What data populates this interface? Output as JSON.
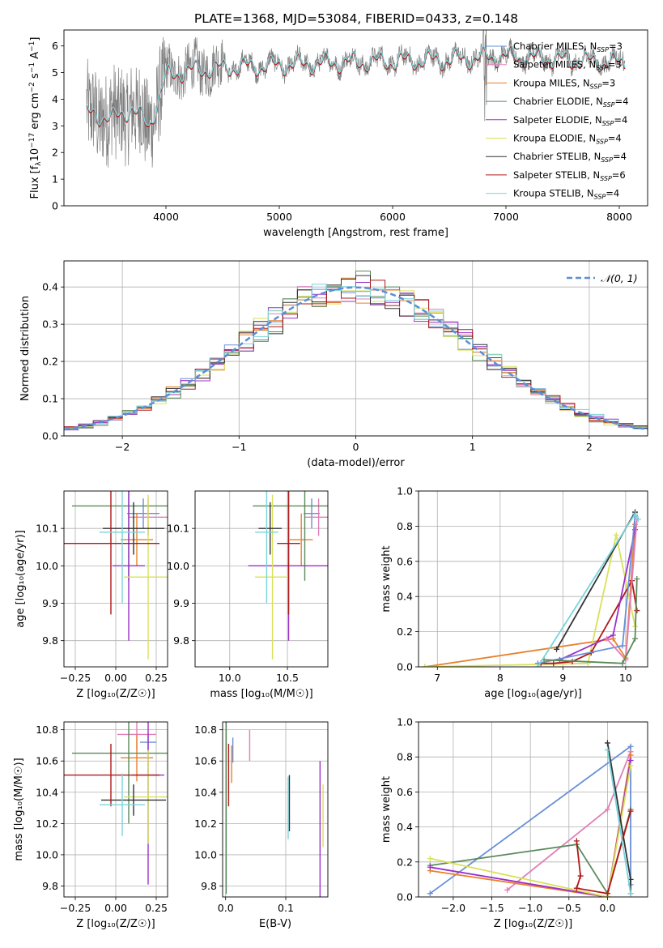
{
  "figure_title": "PLATE=1368, MJD=53084, FIBERID=0433, z=0.148",
  "legend_entries": [
    {
      "prefix": "Chabrier MILES, N",
      "sub": "SSP",
      "suffix": "=3",
      "color": "#6a8fd8"
    },
    {
      "prefix": "Salpeter MILES, N",
      "sub": "SSP",
      "suffix": "=3",
      "color": "#e07fb8"
    },
    {
      "prefix": "Kroupa MILES, N",
      "sub": "SSP",
      "suffix": "=3",
      "color": "#e8812c"
    },
    {
      "prefix": "Chabrier ELODIE, N",
      "sub": "SSP",
      "suffix": "=4",
      "color": "#5a8a5a"
    },
    {
      "prefix": "Salpeter ELODIE, N",
      "sub": "SSP",
      "suffix": "=4",
      "color": "#9b30c8"
    },
    {
      "prefix": "Kroupa ELODIE, N",
      "sub": "SSP",
      "suffix": "=4",
      "color": "#d9e05a"
    },
    {
      "prefix": "Chabrier STELIB, N",
      "sub": "SSP",
      "suffix": "=4",
      "color": "#333333"
    },
    {
      "prefix": "Salpeter STELIB, N",
      "sub": "SSP",
      "suffix": "=6",
      "color": "#b01818"
    },
    {
      "prefix": "Kroupa STELIB, N",
      "sub": "SSP",
      "suffix": "=4",
      "color": "#79d4dc"
    }
  ],
  "normal_legend": "𝒩(0, 1)",
  "chart_data": [
    {
      "id": "spectrum",
      "type": "line",
      "title": "PLATE=1368, MJD=53084, FIBERID=0433, z=0.148",
      "xlabel": "wavelength [Angstrom, rest frame]",
      "ylabel_parts": [
        "Flux [f",
        "λ",
        "10",
        "−17",
        " erg cm",
        "−2",
        " s",
        "−1",
        " A",
        "−1",
        "]"
      ],
      "xlim": [
        3100,
        8250
      ],
      "ylim": [
        0,
        6.6
      ],
      "xticks": [
        4000,
        5000,
        6000,
        7000,
        8000
      ],
      "yticks": [
        0,
        1,
        2,
        3,
        4,
        5,
        6
      ],
      "data_color": "#808080",
      "model_color": "#79d4dc",
      "model_accent_color": "#b01818",
      "continuum_x": [
        3300,
        3550,
        3700,
        3850,
        3950,
        4000,
        4200,
        4500,
        5000,
        5500,
        6000,
        6500,
        7000,
        7500,
        8000
      ],
      "continuum_y": [
        3.5,
        3.3,
        3.7,
        3.0,
        4.2,
        4.9,
        5.1,
        5.2,
        5.3,
        5.4,
        5.45,
        5.5,
        5.65,
        5.5,
        5.4
      ],
      "xmax_data": 8050
    },
    {
      "id": "residuals",
      "type": "line",
      "xlabel": "(data-model)/error",
      "ylabel": "Normed distribution",
      "xlim": [
        -2.5,
        2.5
      ],
      "ylim": [
        0,
        0.47
      ],
      "xticks": [
        -2,
        -1,
        0,
        1,
        2
      ],
      "xtick_labels": [
        "−2",
        "−1",
        "0",
        "1",
        "2"
      ],
      "yticks": [
        0.0,
        0.1,
        0.2,
        0.3,
        0.4
      ],
      "ytick_labels": [
        "0.0",
        "0.1",
        "0.2",
        "0.3",
        "0.4"
      ],
      "grid": true,
      "bin_width": 0.125,
      "series_colors": [
        "#6a8fd8",
        "#e07fb8",
        "#e8812c",
        "#5a8a5a",
        "#9b30c8",
        "#d9e05a",
        "#333333",
        "#b01818",
        "#79d4dc"
      ],
      "normal_color": "#5b8fd8"
    },
    {
      "id": "age_vs_Z",
      "type": "scatter",
      "xlabel": "Z [log₁₀(Z/Z☉)]",
      "ylabel": "age  [log₁₀(age/yr)]",
      "xlim": [
        -0.32,
        0.32
      ],
      "ylim": [
        9.73,
        10.2
      ],
      "xticks": [
        -0.25,
        0.0,
        0.25
      ],
      "xtick_labels": [
        "−0.25",
        "0.00",
        "0.25"
      ],
      "yticks": [
        9.8,
        9.9,
        10.0,
        10.1
      ],
      "ytick_labels": [
        "9.8",
        "9.9",
        "10.0",
        "10.1"
      ],
      "grid": true,
      "points": [
        {
          "x": 0.17,
          "y": 10.14,
          "xerr": 0.1,
          "yerr": 0.04,
          "color": "#6a8fd8"
        },
        {
          "x": 0.2,
          "y": 10.13,
          "xerr": 0.12,
          "yerr": 0.05,
          "color": "#e07fb8"
        },
        {
          "x": 0.13,
          "y": 10.07,
          "xerr": 0.1,
          "yerr": 0.07,
          "color": "#e8812c"
        },
        {
          "x": 0.08,
          "y": 10.16,
          "xerr": 0.35,
          "yerr": 0.2,
          "color": "#5a8a5a"
        },
        {
          "x": 0.08,
          "y": 10.0,
          "xerr": 0.1,
          "yerr": 0.2,
          "color": "#9b30c8"
        },
        {
          "x": 0.2,
          "y": 9.97,
          "xerr": 0.15,
          "yerr": 0.22,
          "color": "#d9e05a"
        },
        {
          "x": 0.11,
          "y": 10.1,
          "xerr": 0.19,
          "yerr": 0.07,
          "color": "#333333"
        },
        {
          "x": -0.03,
          "y": 10.06,
          "xerr": 0.3,
          "yerr": 0.19,
          "color": "#b01818"
        },
        {
          "x": 0.04,
          "y": 10.09,
          "xerr": 0.14,
          "yerr": 0.19,
          "color": "#79d4dc"
        }
      ]
    },
    {
      "id": "age_vs_mass",
      "type": "scatter",
      "xlabel": "mass [log₁₀(M/M☉)]",
      "xlim": [
        9.7,
        10.85
      ],
      "ylim": [
        9.73,
        10.2
      ],
      "xticks": [
        10.0,
        10.5
      ],
      "xtick_labels": [
        "10.0",
        "10.5"
      ],
      "yticks": [
        9.8,
        9.9,
        10.0,
        10.1
      ],
      "ytick_labels": [
        "9.8",
        "9.9",
        "10.0",
        "10.1"
      ],
      "grid": true,
      "points": [
        {
          "x": 10.71,
          "y": 10.14,
          "xerr": 0.07,
          "yerr": 0.04,
          "color": "#6a8fd8"
        },
        {
          "x": 10.77,
          "y": 10.13,
          "xerr": 0.12,
          "yerr": 0.05,
          "color": "#e07fb8"
        },
        {
          "x": 10.62,
          "y": 10.07,
          "xerr": 0.1,
          "yerr": 0.07,
          "color": "#e8812c"
        },
        {
          "x": 10.65,
          "y": 10.16,
          "xerr": 0.45,
          "yerr": 0.2,
          "color": "#5a8a5a"
        },
        {
          "x": 10.51,
          "y": 10.0,
          "xerr": 0.35,
          "yerr": 0.2,
          "color": "#9b30c8"
        },
        {
          "x": 10.37,
          "y": 9.97,
          "xerr": 0.15,
          "yerr": 0.22,
          "color": "#d9e05a"
        },
        {
          "x": 10.35,
          "y": 10.1,
          "xerr": 0.1,
          "yerr": 0.07,
          "color": "#333333"
        },
        {
          "x": 10.51,
          "y": 10.06,
          "xerr": 0.1,
          "yerr": 0.19,
          "color": "#b01818"
        },
        {
          "x": 10.32,
          "y": 10.09,
          "xerr": 0.1,
          "yerr": 0.19,
          "color": "#79d4dc"
        }
      ]
    },
    {
      "id": "massweight_vs_age",
      "type": "line",
      "xlabel": "age  [log₁₀(age/yr)]",
      "ylabel": "mass weight",
      "xlim": [
        6.7,
        10.35
      ],
      "ylim": [
        0,
        1.0
      ],
      "xticks": [
        7,
        8,
        9,
        10
      ],
      "xtick_labels": [
        "7",
        "8",
        "9",
        "10"
      ],
      "yticks": [
        0.0,
        0.2,
        0.4,
        0.6,
        0.8,
        1.0
      ],
      "ytick_labels": [
        "0.0",
        "0.2",
        "0.4",
        "0.6",
        "0.8",
        "1.0"
      ],
      "grid": true,
      "series": [
        {
          "color": "#e8812c",
          "x": [
            6.8,
            9.8,
            10.0,
            10.15
          ],
          "y": [
            0.0,
            0.16,
            0.05,
            0.81
          ]
        },
        {
          "color": "#d9e05a",
          "x": [
            6.8,
            9.4,
            9.85,
            10.15
          ],
          "y": [
            0.0,
            0.02,
            0.75,
            0.23
          ]
        },
        {
          "color": "#b01818",
          "x": [
            8.65,
            8.85,
            9.15,
            9.45,
            10.1,
            10.18
          ],
          "y": [
            0.02,
            0.02,
            0.03,
            0.08,
            0.49,
            0.32
          ]
        },
        {
          "color": "#9b30c8",
          "x": [
            8.95,
            9.8,
            10.15
          ],
          "y": [
            0.04,
            0.18,
            0.78
          ]
        },
        {
          "color": "#6a8fd8",
          "x": [
            8.6,
            9.95,
            10.15
          ],
          "y": [
            0.02,
            0.12,
            0.86
          ]
        },
        {
          "color": "#e07fb8",
          "x": [
            9.7,
            10.0,
            10.18
          ],
          "y": [
            0.16,
            0.04,
            0.84
          ]
        },
        {
          "color": "#5a8a5a",
          "x": [
            8.7,
            9.95,
            10.15,
            10.18
          ],
          "y": [
            0.04,
            0.02,
            0.16,
            0.5
          ]
        },
        {
          "color": "#333333",
          "x": [
            8.9,
            10.15
          ],
          "y": [
            0.1,
            0.88
          ]
        },
        {
          "color": "#79d4dc",
          "x": [
            8.6,
            10.15,
            10.2
          ],
          "y": [
            0.0,
            0.87,
            0.84
          ]
        }
      ]
    },
    {
      "id": "mass_vs_Z",
      "type": "scatter",
      "xlabel": "Z [log₁₀(Z/Z☉)]",
      "ylabel": "mass [log₁₀(M/M☉)]",
      "xlim": [
        -0.32,
        0.32
      ],
      "ylim": [
        9.73,
        10.85
      ],
      "xticks": [
        -0.25,
        0.0,
        0.25
      ],
      "xtick_labels": [
        "−0.25",
        "0.00",
        "0.25"
      ],
      "yticks": [
        9.8,
        10.0,
        10.2,
        10.4,
        10.6,
        10.8
      ],
      "ytick_labels": [
        "9.8",
        "10.0",
        "10.2",
        "10.4",
        "10.6",
        "10.8"
      ],
      "grid": true,
      "points": [
        {
          "x": 0.2,
          "y": 10.72,
          "xerr": 0.05,
          "yerr": 0.05,
          "color": "#6a8fd8"
        },
        {
          "x": 0.13,
          "y": 10.77,
          "xerr": 0.12,
          "yerr": 0.1,
          "color": "#e07fb8"
        },
        {
          "x": 0.13,
          "y": 10.62,
          "xerr": 0.1,
          "yerr": 0.15,
          "color": "#e8812c"
        },
        {
          "x": 0.08,
          "y": 10.65,
          "xerr": 0.35,
          "yerr": 0.45,
          "color": "#5a8a5a"
        },
        {
          "x": 0.2,
          "y": 10.51,
          "xerr": 0.1,
          "yerr": 0.7,
          "color": "#9b30c8"
        },
        {
          "x": 0.2,
          "y": 10.37,
          "xerr": 0.15,
          "yerr": 0.3,
          "color": "#d9e05a"
        },
        {
          "x": 0.11,
          "y": 10.35,
          "xerr": 0.2,
          "yerr": 0.1,
          "color": "#333333"
        },
        {
          "x": -0.03,
          "y": 10.51,
          "xerr": 0.3,
          "yerr": 0.2,
          "color": "#b01818"
        },
        {
          "x": 0.04,
          "y": 10.32,
          "xerr": 0.14,
          "yerr": 0.2,
          "color": "#79d4dc"
        }
      ]
    },
    {
      "id": "mass_vs_ebv",
      "type": "scatter",
      "xlabel": "E(B-V)",
      "xlim": [
        -0.005,
        0.17
      ],
      "ylim": [
        9.73,
        10.85
      ],
      "xticks": [
        0.0,
        0.1
      ],
      "xtick_labels": [
        "0.0",
        "0.1"
      ],
      "yticks": [
        9.8,
        10.0,
        10.2,
        10.4,
        10.6,
        10.8
      ],
      "ytick_labels": [
        "9.8",
        "10.0",
        "10.2",
        "10.4",
        "10.6",
        "10.8"
      ],
      "grid": true,
      "points": [
        {
          "x": 0.012,
          "y": 10.67,
          "xerr": 0.0,
          "yerr": 0.08,
          "color": "#6a8fd8"
        },
        {
          "x": 0.04,
          "y": 10.7,
          "xerr": 0.0,
          "yerr": 0.1,
          "color": "#e07fb8"
        },
        {
          "x": 0.01,
          "y": 10.58,
          "xerr": 0.0,
          "yerr": 0.12,
          "color": "#e8812c"
        },
        {
          "x": 0.001,
          "y": 10.3,
          "xerr": 0.0,
          "yerr": 0.55,
          "color": "#5a8a5a"
        },
        {
          "x": 0.157,
          "y": 10.1,
          "xerr": 0.0,
          "yerr": 0.5,
          "color": "#9b30c8"
        },
        {
          "x": 0.162,
          "y": 10.25,
          "xerr": 0.0,
          "yerr": 0.2,
          "color": "#d9e05a"
        },
        {
          "x": 0.106,
          "y": 10.33,
          "xerr": 0.0,
          "yerr": 0.18,
          "color": "#333333"
        },
        {
          "x": 0.005,
          "y": 10.51,
          "xerr": 0.0,
          "yerr": 0.2,
          "color": "#b01818"
        },
        {
          "x": 0.104,
          "y": 10.3,
          "xerr": 0.0,
          "yerr": 0.2,
          "color": "#79d4dc"
        }
      ]
    },
    {
      "id": "massweight_vs_Z",
      "type": "line",
      "xlabel": "Z [log₁₀(Z/Z☉)]",
      "ylabel": "mass weight",
      "xlim": [
        -2.45,
        0.52
      ],
      "ylim": [
        0,
        1.0
      ],
      "xticks": [
        -2.0,
        -1.5,
        -1.0,
        -0.5,
        0.0
      ],
      "xtick_labels": [
        "−2.0",
        "−1.5",
        "−1.0",
        "−0.5",
        "0.0"
      ],
      "yticks": [
        0.0,
        0.2,
        0.4,
        0.6,
        0.8,
        1.0
      ],
      "ytick_labels": [
        "0.0",
        "0.2",
        "0.4",
        "0.6",
        "0.8",
        "1.0"
      ],
      "grid": true,
      "series": [
        {
          "color": "#6a8fd8",
          "x": [
            -2.3,
            0.3,
            0.3
          ],
          "y": [
            0.02,
            0.86,
            0.07
          ]
        },
        {
          "color": "#e07fb8",
          "x": [
            -1.3,
            0.0,
            0.3
          ],
          "y": [
            0.04,
            0.5,
            0.83
          ]
        },
        {
          "color": "#e8812c",
          "x": [
            -2.3,
            0.0,
            0.3
          ],
          "y": [
            0.15,
            0.0,
            0.81
          ]
        },
        {
          "color": "#5a8a5a",
          "x": [
            -2.3,
            -0.4,
            0.0,
            0.3
          ],
          "y": [
            0.18,
            0.3,
            0.02,
            0.5
          ]
        },
        {
          "color": "#9b30c8",
          "x": [
            -2.3,
            0.0,
            0.3
          ],
          "y": [
            0.17,
            0.0,
            0.78
          ]
        },
        {
          "color": "#d9e05a",
          "x": [
            -2.3,
            0.0,
            0.3
          ],
          "y": [
            0.22,
            0.0,
            0.75
          ]
        },
        {
          "color": "#333333",
          "x": [
            0.0,
            0.3,
            0.3
          ],
          "y": [
            0.88,
            0.1,
            0.02
          ]
        },
        {
          "color": "#b01818",
          "x": [
            -0.4,
            -0.35,
            -0.4,
            0.0,
            0.3
          ],
          "y": [
            0.32,
            0.12,
            0.05,
            0.02,
            0.49
          ]
        },
        {
          "color": "#79d4dc",
          "x": [
            0.0,
            0.3
          ],
          "y": [
            0.84,
            0.02
          ]
        }
      ]
    }
  ]
}
